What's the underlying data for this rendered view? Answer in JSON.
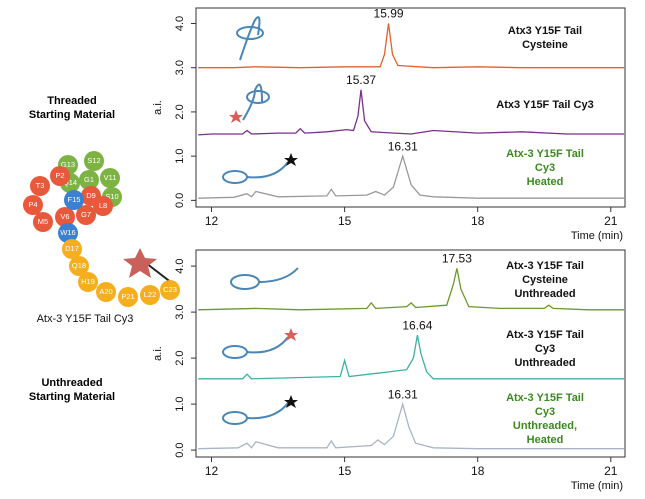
{
  "chart_data": [
    {
      "type": "line",
      "xlabel": "Time (min)",
      "ylabel": "a.i.",
      "xlim": [
        11.65,
        21.32
      ],
      "ylim": [
        -0.15,
        4.35
      ],
      "xticks": [
        12,
        15,
        18,
        21
      ],
      "yticks": [
        {
          "value": 0,
          "label": "0.0"
        },
        {
          "value": 1,
          "label": "1.0"
        },
        {
          "value": 2,
          "label": "2.0"
        },
        {
          "value": 3,
          "label": "3.0"
        },
        {
          "value": 4,
          "label": "4.0"
        }
      ],
      "series": [
        {
          "name": "Atx3 Y15F Tail Cysteine",
          "color": "#e0632a",
          "label_color": "#111111",
          "x": [
            11.7,
            12.5,
            13.0,
            14.0,
            15.0,
            15.8,
            15.9,
            15.99,
            16.08,
            16.2,
            17.0,
            18.0,
            19.0,
            20.0,
            21.3
          ],
          "values": [
            3.0,
            3.0,
            3.02,
            3.0,
            3.02,
            3.02,
            3.3,
            4.0,
            3.3,
            3.05,
            3.0,
            3.02,
            3.0,
            3.0,
            3.0
          ]
        },
        {
          "name": "Atx3 Y15F Tail Cy3",
          "color": "#7b2f8e",
          "label_color": "#111111",
          "x": [
            11.7,
            12.0,
            12.7,
            12.8,
            12.9,
            13.5,
            13.9,
            14.0,
            14.1,
            14.6,
            15.05,
            15.2,
            15.3,
            15.37,
            15.45,
            15.6,
            16.5,
            17.0,
            18.0,
            19.0,
            20.0,
            21.3
          ],
          "values": [
            1.48,
            1.5,
            1.5,
            1.58,
            1.5,
            1.52,
            1.52,
            1.62,
            1.52,
            1.55,
            1.6,
            1.58,
            1.9,
            2.5,
            1.8,
            1.55,
            1.5,
            1.58,
            1.52,
            1.55,
            1.5,
            1.5
          ]
        },
        {
          "name": "Atx-3 Y15F Tail Cy3\nHeated",
          "color": "#9a9a9a",
          "label_color": "#3a8a1e",
          "x": [
            11.7,
            12.5,
            12.8,
            12.9,
            13.0,
            13.5,
            14.6,
            14.7,
            14.8,
            15.5,
            15.7,
            15.9,
            16.1,
            16.31,
            16.5,
            16.7,
            17.0,
            18.0,
            19.0,
            20.0,
            21.3
          ],
          "values": [
            0.05,
            0.07,
            0.15,
            0.08,
            0.2,
            0.08,
            0.1,
            0.25,
            0.1,
            0.12,
            0.2,
            0.12,
            0.3,
            1.0,
            0.35,
            0.12,
            0.08,
            0.05,
            0.05,
            0.05,
            0.05
          ]
        }
      ],
      "annotations": [
        {
          "x": 15.99,
          "y": 4.0
        },
        {
          "x": 15.37,
          "y": 2.5
        },
        {
          "x": 16.31,
          "y": 1.0
        }
      ]
    },
    {
      "type": "line",
      "xlabel": "Time (min)",
      "ylabel": "a.i.",
      "xlim": [
        11.65,
        21.32
      ],
      "ylim": [
        -0.15,
        4.35
      ],
      "xticks": [
        12,
        15,
        18,
        21
      ],
      "yticks": [
        {
          "value": 0,
          "label": "0.0"
        },
        {
          "value": 1,
          "label": "1.0"
        },
        {
          "value": 2,
          "label": "2.0"
        },
        {
          "value": 3,
          "label": "3.0"
        },
        {
          "value": 4,
          "label": "4.0"
        }
      ],
      "series": [
        {
          "name": "Atx-3 Y15F Tail Cysteine\nUnthreaded",
          "color": "#6a9a2a",
          "label_color": "#111111",
          "x": [
            11.7,
            13.0,
            14.0,
            15.5,
            15.6,
            15.7,
            16.4,
            16.5,
            16.6,
            17.3,
            17.45,
            17.53,
            17.62,
            17.8,
            18.5,
            19.5,
            19.6,
            19.7,
            20.5,
            21.3
          ],
          "values": [
            3.05,
            3.08,
            3.05,
            3.08,
            3.2,
            3.08,
            3.12,
            3.2,
            3.1,
            3.15,
            3.6,
            3.95,
            3.5,
            3.12,
            3.08,
            3.08,
            3.15,
            3.08,
            3.05,
            3.05
          ]
        },
        {
          "name": "Atx-3 Y15F Tail Cy3\nUnthreaded",
          "color": "#3bb3a4",
          "label_color": "#111111",
          "x": [
            11.7,
            12.7,
            12.8,
            12.9,
            14.9,
            15.0,
            15.1,
            16.0,
            16.4,
            16.55,
            16.64,
            16.72,
            16.85,
            17.0,
            18.0,
            19.5,
            21.3
          ],
          "values": [
            1.55,
            1.55,
            1.65,
            1.55,
            1.6,
            1.95,
            1.6,
            1.7,
            1.75,
            2.0,
            2.5,
            2.1,
            1.7,
            1.55,
            1.55,
            1.55,
            1.55
          ]
        },
        {
          "name": "Atx-3 Y15F Tail Cy3\nUnthreaded, Heated",
          "color": "#a9b4c8",
          "label_color": "#3a8a1e",
          "x": [
            11.7,
            12.6,
            12.8,
            12.9,
            13.0,
            13.5,
            14.6,
            14.7,
            14.8,
            15.6,
            15.75,
            15.9,
            16.1,
            16.31,
            16.45,
            16.6,
            17.0,
            18.0,
            21.3
          ],
          "values": [
            0.03,
            0.05,
            0.15,
            0.05,
            0.18,
            0.05,
            0.05,
            0.2,
            0.05,
            0.1,
            0.22,
            0.12,
            0.3,
            1.0,
            0.5,
            0.15,
            0.05,
            0.03,
            0.03
          ]
        }
      ],
      "annotations": [
        {
          "x": 17.53,
          "y": 3.95
        },
        {
          "x": 16.64,
          "y": 2.5
        },
        {
          "x": 16.31,
          "y": 1.0
        }
      ]
    }
  ],
  "side_labels": [
    "Threaded\nStarting Material",
    "Unthreaded\nStarting Material"
  ],
  "diagram": {
    "caption": "Atx-3 Y15F Tail Cy3",
    "residues": [
      {
        "label": "G13",
        "color": "#7cb342"
      },
      {
        "label": "S12",
        "color": "#7cb342"
      },
      {
        "label": "Q14",
        "color": "#7cb342"
      },
      {
        "label": "G1",
        "color": "#7cb342"
      },
      {
        "label": "V11",
        "color": "#7cb342"
      },
      {
        "label": "S10",
        "color": "#7cb342"
      },
      {
        "label": "P2",
        "color": "#e8583a"
      },
      {
        "label": "T3",
        "color": "#e8583a"
      },
      {
        "label": "P4",
        "color": "#e8583a"
      },
      {
        "label": "M5",
        "color": "#e8583a"
      },
      {
        "label": "V6",
        "color": "#e8583a"
      },
      {
        "label": "G7",
        "color": "#e8583a"
      },
      {
        "label": "L8",
        "color": "#e8583a"
      },
      {
        "label": "D9",
        "color": "#e8583a"
      },
      {
        "label": "F15",
        "color": "#3d7fd0"
      },
      {
        "label": "W16",
        "color": "#3d7fd0"
      },
      {
        "label": "D17",
        "color": "#f4ae1e"
      },
      {
        "label": "Q18",
        "color": "#f4ae1e"
      },
      {
        "label": "H19",
        "color": "#f4ae1e"
      },
      {
        "label": "A20",
        "color": "#f4ae1e"
      },
      {
        "label": "P21",
        "color": "#f4ae1e"
      },
      {
        "label": "L22",
        "color": "#f4ae1e"
      },
      {
        "label": "C23",
        "color": "#f4ae1e"
      }
    ]
  }
}
